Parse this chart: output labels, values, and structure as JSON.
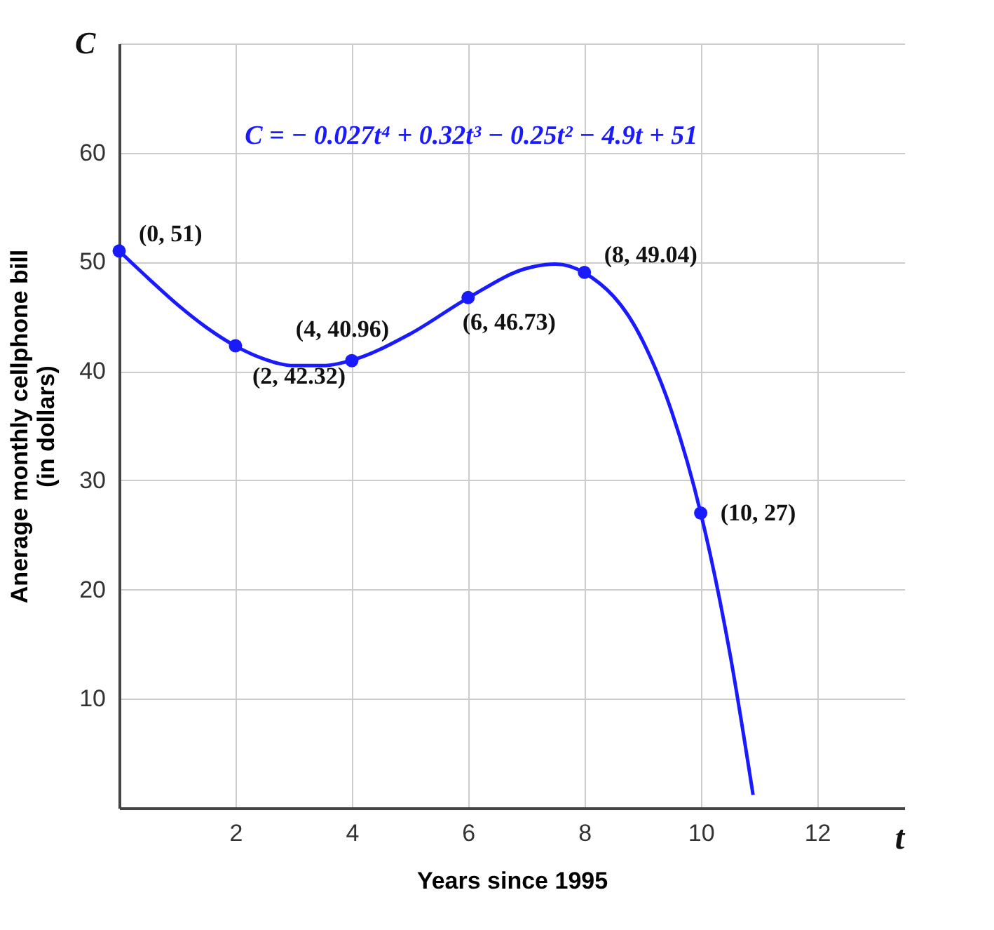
{
  "chart_data": {
    "type": "line",
    "xlabel": "Years since 1995",
    "ylabel": "Anerage monthly cellphone bill\n(in dollars)",
    "annotations": [
      "C = − 0.027t⁴ + 0.32t³ − 0.25t² − 4.9t + 51",
      "C",
      "t"
    ],
    "xlim": [
      0,
      13.5
    ],
    "ylim": [
      0,
      70
    ],
    "xticks": [
      2,
      4,
      6,
      8,
      10,
      12
    ],
    "yticks": [
      10,
      20,
      30,
      40,
      50,
      60,
      {
        "value": 70,
        "label": null
      }
    ],
    "grid": true,
    "series": [
      {
        "type": "line",
        "color": "#1a1aff",
        "marker": "none",
        "x": [
          0,
          0.5,
          1,
          1.5,
          2,
          2.5,
          3,
          3.5,
          4,
          5,
          6,
          7,
          7.5,
          8,
          9,
          9.5,
          10,
          10.5,
          10.9
        ],
        "values": [
          51,
          48.5,
          46.1,
          44,
          42.3,
          41.1,
          40.5,
          40.5,
          41,
          43.4,
          46.7,
          49.4,
          49.8,
          49,
          42.8,
          36.3,
          27,
          14.2,
          1.2
        ]
      },
      {
        "type": "scatter",
        "color": "#1a1aff",
        "marker": "circle",
        "x": [
          0,
          2,
          4,
          6,
          8,
          10
        ],
        "values": [
          51,
          42.32,
          40.96,
          46.73,
          49.04,
          27
        ],
        "value_labels": [
          "(0, 51)",
          "(2, 42.32)",
          "(4, 40.96)",
          "(6, 46.73)",
          "(8, 49.04)",
          "(10, 27)"
        ]
      }
    ]
  }
}
